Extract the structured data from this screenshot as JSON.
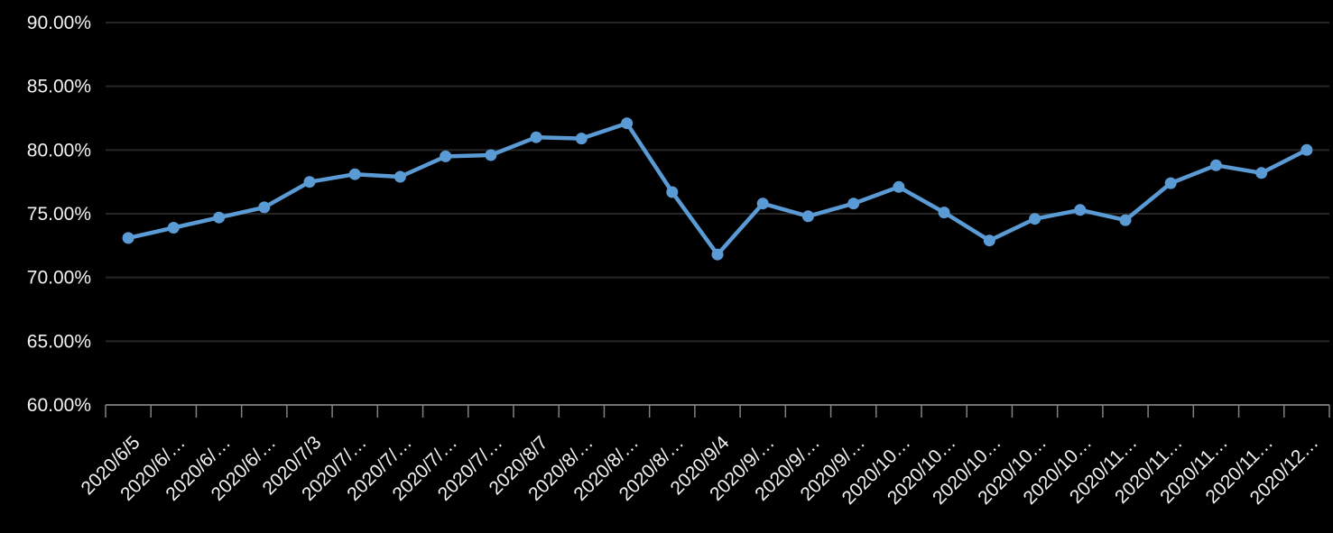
{
  "chart": {
    "background_color": "#000000",
    "label_color": "#f2f2f2",
    "axis_color": "#828282",
    "gridline_color": "#262626",
    "series_color": "#5b9bd5",
    "marker_shape": "circle",
    "x_label_rotation_deg": 45
  },
  "chart_data": {
    "type": "line",
    "title": "",
    "legend": "none",
    "grid": "horizontal",
    "categories": [
      "2020/6/5",
      "2020/6/…",
      "2020/6/…",
      "2020/6/…",
      "2020/7/3",
      "2020/7/…",
      "2020/7/…",
      "2020/7/…",
      "2020/7/…",
      "2020/8/7",
      "2020/8/…",
      "2020/8/…",
      "2020/8/…",
      "2020/9/4",
      "2020/9/…",
      "2020/9/…",
      "2020/9/…",
      "2020/10…",
      "2020/10…",
      "2020/10…",
      "2020/10…",
      "2020/10…",
      "2020/11…",
      "2020/11…",
      "2020/11…",
      "2020/11…",
      "2020/12…"
    ],
    "values": [
      73.1,
      73.9,
      74.7,
      75.5,
      77.5,
      78.1,
      77.9,
      79.5,
      79.6,
      81.0,
      80.9,
      82.1,
      76.7,
      71.8,
      75.8,
      74.8,
      75.8,
      77.1,
      75.1,
      72.9,
      74.6,
      75.3,
      74.5,
      77.4,
      78.8,
      78.2,
      80.0
    ],
    "xlabel": "",
    "ylabel": "",
    "ylim": [
      60,
      90
    ],
    "y_tick_step": 5,
    "y_tick_labels": [
      "60.00%",
      "65.00%",
      "70.00%",
      "75.00%",
      "80.00%",
      "85.00%",
      "90.00%"
    ],
    "y_format": "0.00%"
  }
}
